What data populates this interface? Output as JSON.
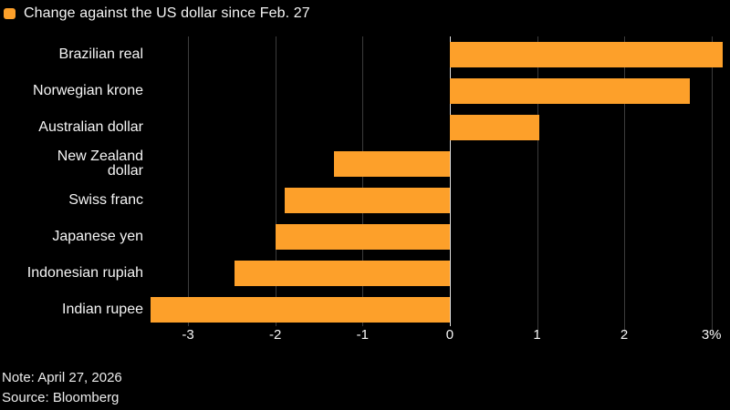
{
  "legend": {
    "title": "Change against the US dollar since Feb. 27",
    "swatch_color": "#FDA02A"
  },
  "chart_data": {
    "type": "bar",
    "orientation": "horizontal",
    "title": "Change against the US dollar since Feb. 27",
    "categories": [
      "Brazilian real",
      "Norwegian krone",
      "Australian dollar",
      "New Zealand\ndollar",
      "Swiss franc",
      "Japanese yen",
      "Indonesian rupiah",
      "Indian rupee"
    ],
    "values": [
      3.13,
      2.75,
      1.03,
      -1.33,
      -1.89,
      -2.0,
      -2.47,
      -3.43
    ],
    "unit": "%",
    "xlabel": "",
    "ylabel": "",
    "xlim": [
      -3.43,
      3.16
    ],
    "xticks": [
      {
        "v": -3,
        "label": "-3"
      },
      {
        "v": -2,
        "label": "-2"
      },
      {
        "v": -1,
        "label": "-1"
      },
      {
        "v": 0,
        "label": "0"
      },
      {
        "v": 1,
        "label": "1"
      },
      {
        "v": 2,
        "label": "2"
      },
      {
        "v": 3,
        "label": "3%"
      }
    ],
    "gridlines": [
      -3,
      -2,
      -1,
      1,
      2,
      3
    ],
    "grid_on": true,
    "legend_position": "top-left",
    "bar_color": "#FDA02A",
    "grid_color": "#3c3c3c",
    "zero_line_color": "#dcdcdc",
    "background_color": "#000000",
    "text_color": "#f5f5f5"
  },
  "footer": {
    "note": "Note: April 27, 2026",
    "source": "Source: Bloomberg"
  }
}
